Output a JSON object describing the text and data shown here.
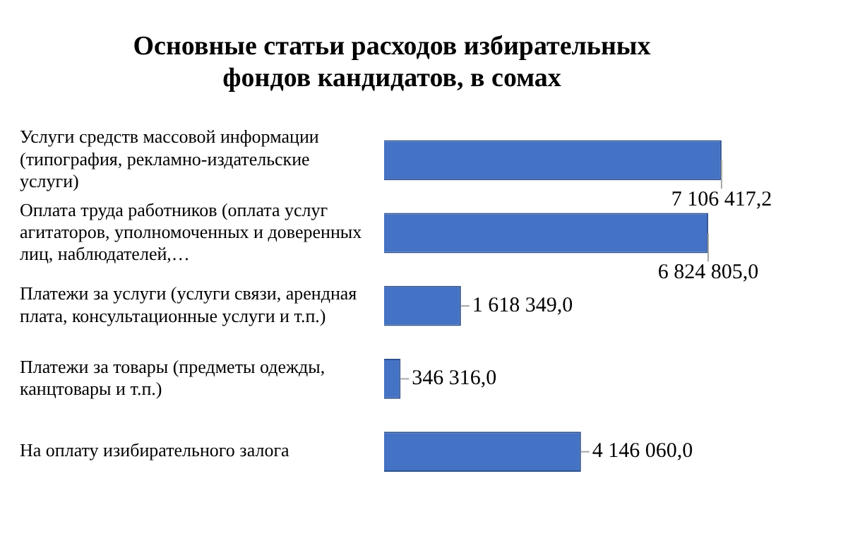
{
  "chart_data": {
    "type": "bar",
    "orientation": "horizontal",
    "title": "Основные статьи расходов избирательных фондов кандидатов, в сомах",
    "categories": [
      "Услуги средств массовой информации (типография, рекламно-издательские услуги)",
      "Оплата труда работников (оплата услуг агитаторов, уполномоченных и доверенных лиц, наблюдателей,…",
      "Платежи за услуги (услуги связи, арендная плата, консультационные услуги и т.п.)",
      "Платежи за товары (предметы одежды, канцтовары и т.п.)",
      "На оплату изибирательного залога"
    ],
    "values": [
      7106417.2,
      6824805.0,
      1618349.0,
      346316.0,
      4146060.0
    ],
    "value_labels": [
      "7 106 417,2",
      "6 824 805,0",
      "1 618 349,0",
      "346 316,0",
      "4 146 060,0"
    ],
    "color": "#4472c4",
    "grid": false,
    "legend": false
  }
}
